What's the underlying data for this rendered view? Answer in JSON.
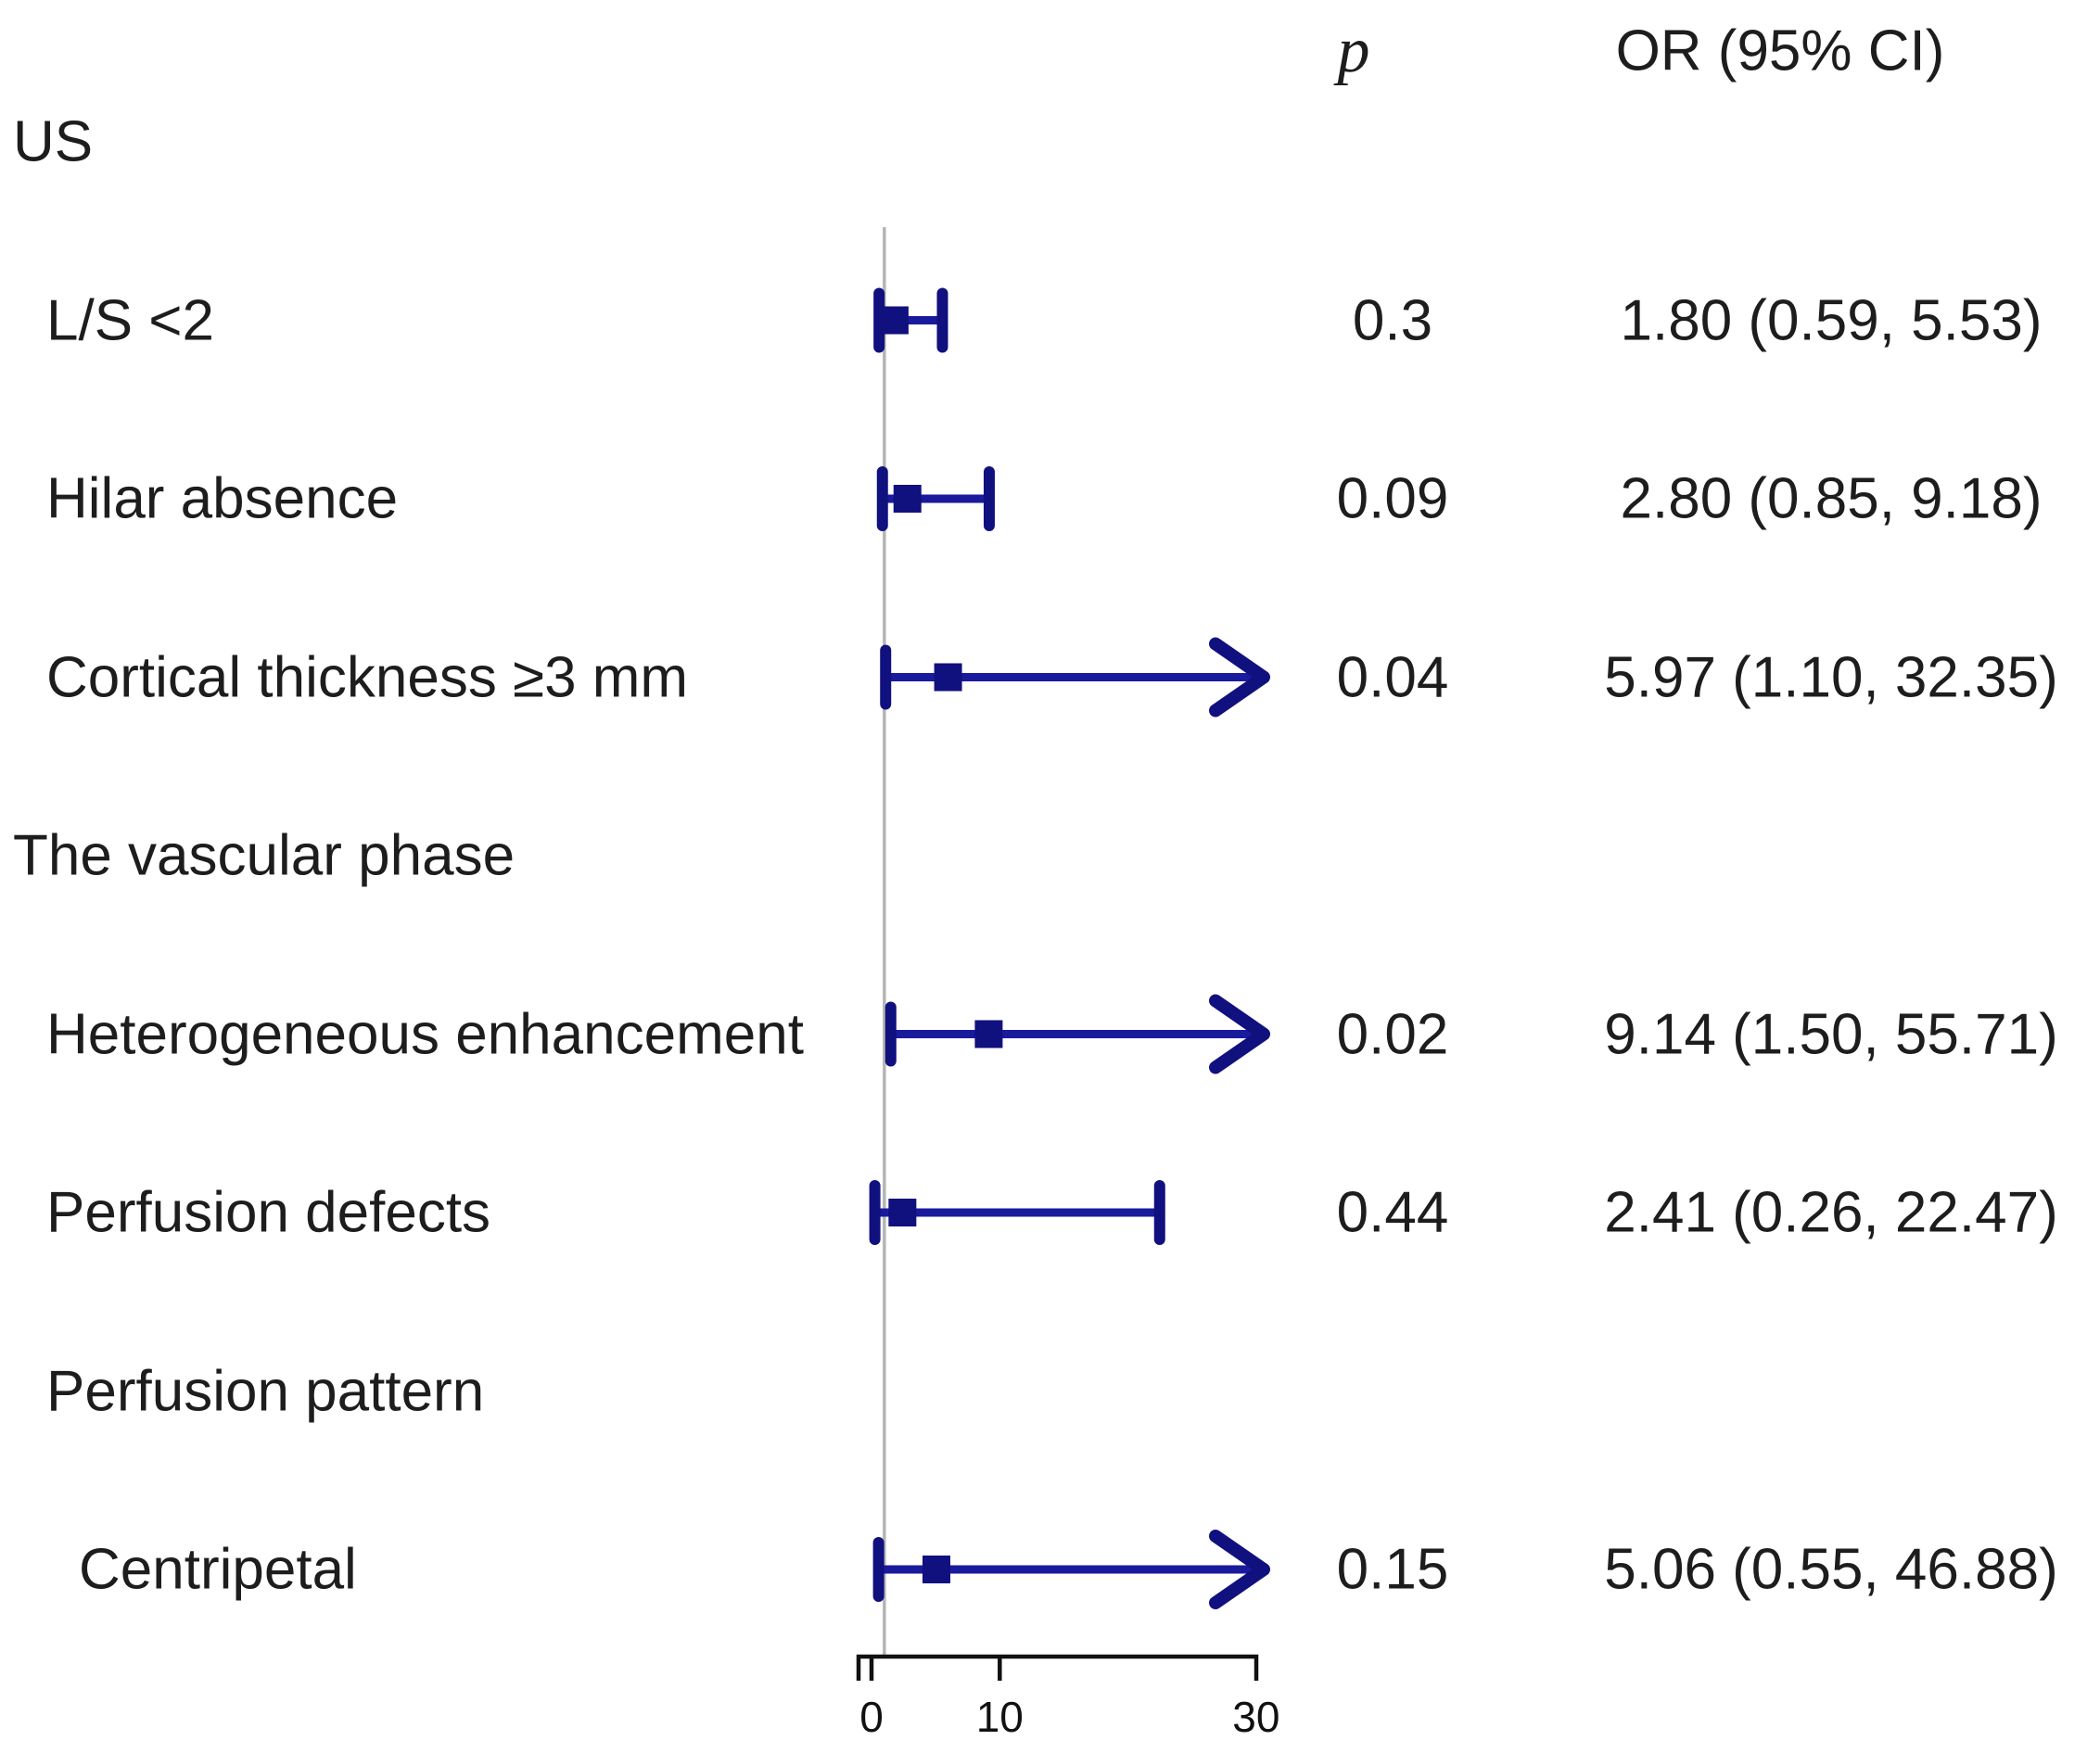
{
  "header": {
    "p_label": "p",
    "or_label": "OR (95% CI)"
  },
  "chart_data": {
    "type": "forest",
    "title": "",
    "xlabel": "",
    "axis": {
      "xlim": [
        0,
        30
      ],
      "ticks": [
        {
          "value": 0,
          "label": "0"
        },
        {
          "value": 10,
          "label": "10"
        },
        {
          "value": 30,
          "label": "30"
        }
      ],
      "reference_line_value": 1,
      "grid": false
    },
    "colors": {
      "marker_line": "#1a1a9c",
      "marker_dark": "#10107f",
      "reference_line": "#b5b5b5",
      "axis": "#111111",
      "text": "#1d1d1d"
    },
    "items": [
      {
        "type": "section",
        "label": "US",
        "indent": 0
      },
      {
        "type": "row",
        "label": "L/S <2",
        "indent": 1,
        "p": "0.3",
        "or_text": "1.80 (0.59, 5.53)",
        "or": 1.8,
        "ci_low": 0.59,
        "ci_high": 5.53,
        "arrow": false
      },
      {
        "type": "row",
        "label": "Hilar absence",
        "indent": 1,
        "p": "0.09",
        "or_text": "2.80 (0.85, 9.18)",
        "or": 2.8,
        "ci_low": 0.85,
        "ci_high": 9.18,
        "arrow": false
      },
      {
        "type": "row",
        "label": "Cortical thickness ≥3 mm",
        "indent": 1,
        "p": "0.04",
        "or_text": "5.97 (1.10, 32.35)",
        "or": 5.97,
        "ci_low": 1.1,
        "ci_high": 32.35,
        "arrow": true
      },
      {
        "type": "section",
        "label": "The vascular phase",
        "indent": 0
      },
      {
        "type": "row",
        "label": "Heterogeneous enhancement",
        "indent": 1,
        "p": "0.02",
        "or_text": "9.14 (1.50, 55.71)",
        "or": 9.14,
        "ci_low": 1.5,
        "ci_high": 55.71,
        "arrow": true
      },
      {
        "type": "row",
        "label": "Perfusion defects",
        "indent": 1,
        "p": "0.44",
        "or_text": "2.41 (0.26, 22.47)",
        "or": 2.41,
        "ci_low": 0.26,
        "ci_high": 22.47,
        "arrow": false
      },
      {
        "type": "section",
        "label": "Perfusion pattern",
        "indent": 1
      },
      {
        "type": "row",
        "label": "Centripetal",
        "indent": 2,
        "p": "0.15",
        "or_text": "5.06 (0.55, 46.88)",
        "or": 5.06,
        "ci_low": 0.55,
        "ci_high": 46.88,
        "arrow": true
      }
    ]
  }
}
